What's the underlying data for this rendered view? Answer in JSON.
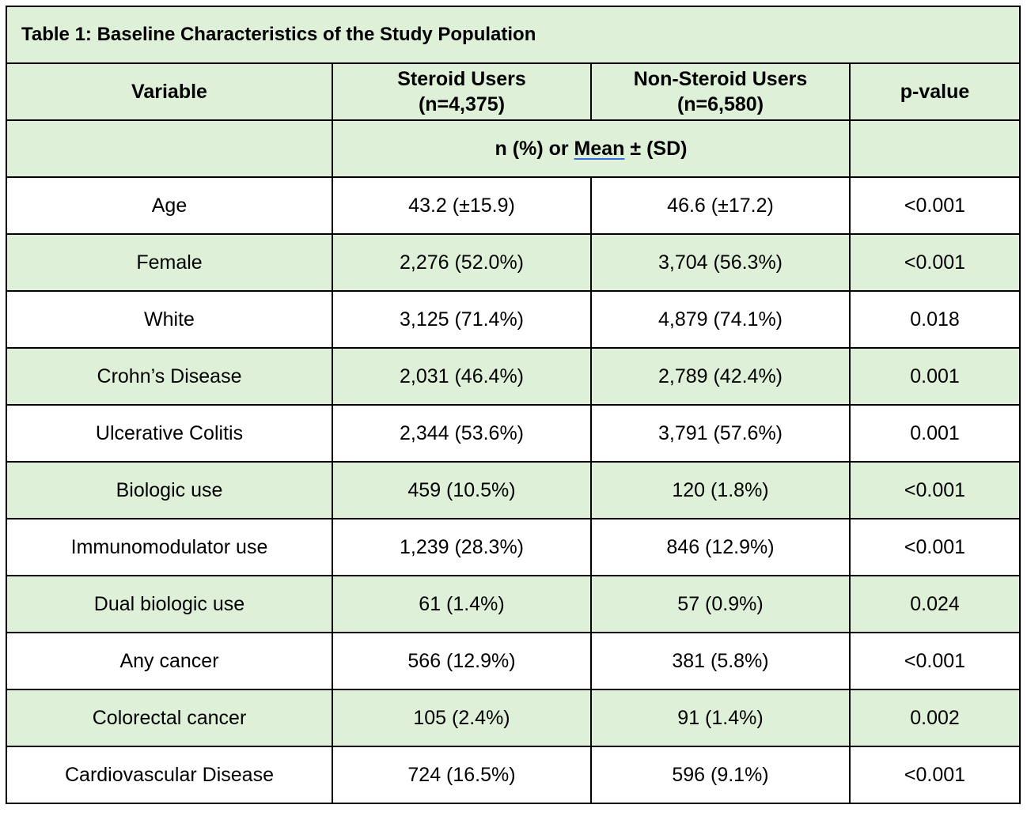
{
  "caption": "Table 1: Baseline Characteristics of the Study Population",
  "header": {
    "variable": "Variable",
    "steroid_label": "Steroid Users",
    "steroid_n": "(n=4,375)",
    "nonsteroid_label": "Non-Steroid Users",
    "nonsteroid_n": "(n=6,580)",
    "pvalue": "p-value"
  },
  "subheader": {
    "prefix": "n (%) or ",
    "mean": "Mean",
    "suffix": " ± (SD)"
  },
  "rows": [
    {
      "variable": "Age",
      "steroid": "43.2 (±15.9)",
      "nonsteroid": "46.6 (±17.2)",
      "p": "<0.001"
    },
    {
      "variable": "Female",
      "steroid": "2,276 (52.0%)",
      "nonsteroid": "3,704 (56.3%)",
      "p": "<0.001"
    },
    {
      "variable": "White",
      "steroid": "3,125 (71.4%)",
      "nonsteroid": "4,879 (74.1%)",
      "p": "0.018"
    },
    {
      "variable": "Crohn’s Disease",
      "steroid": "2,031 (46.4%)",
      "nonsteroid": "2,789 (42.4%)",
      "p": "0.001"
    },
    {
      "variable": "Ulcerative Colitis",
      "steroid": "2,344 (53.6%)",
      "nonsteroid": "3,791 (57.6%)",
      "p": "0.001"
    },
    {
      "variable": "Biologic use",
      "steroid": "459 (10.5%)",
      "nonsteroid": "120 (1.8%)",
      "p": "<0.001"
    },
    {
      "variable": "Immunomodulator use",
      "steroid": "1,239 (28.3%)",
      "nonsteroid": "846 (12.9%)",
      "p": "<0.001"
    },
    {
      "variable": "Dual biologic use",
      "steroid": "61 (1.4%)",
      "nonsteroid": "57 (0.9%)",
      "p": "0.024"
    },
    {
      "variable": "Any cancer",
      "steroid": "566 (12.9%)",
      "nonsteroid": "381 (5.8%)",
      "p": "<0.001"
    },
    {
      "variable": "Colorectal cancer",
      "steroid": "105 (2.4%)",
      "nonsteroid": "91 (1.4%)",
      "p": "0.002"
    },
    {
      "variable": "Cardiovascular Disease",
      "steroid": "724 (16.5%)",
      "nonsteroid": "596 (9.1%)",
      "p": "<0.001"
    }
  ],
  "colors": {
    "green_fill": "#dff0d8",
    "white_fill": "#ffffff",
    "border": "#000000"
  }
}
